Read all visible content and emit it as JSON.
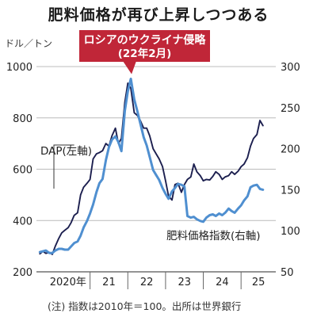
{
  "chart_data": {
    "type": "line",
    "title": "肥料価格が再び上昇しつつある",
    "unit_label": "ドル／トン",
    "note": "(注) 指数は2010年＝100。出所は世界銀行",
    "callout": {
      "line1": "ロシアのウクライナ侵略",
      "line2": "(22年2月)",
      "date": 2022.1,
      "color": "#c02638"
    },
    "x_tick_labels": [
      {
        "x": 2020,
        "label": "2020年"
      },
      {
        "x": 2021,
        "label": "21"
      },
      {
        "x": 2022,
        "label": "22"
      },
      {
        "x": 2023,
        "label": "23"
      },
      {
        "x": 2024,
        "label": "24"
      },
      {
        "x": 2025,
        "label": "25"
      }
    ],
    "xlim": [
      2019.58,
      2025.92
    ],
    "y_left": {
      "ticks": [
        200,
        400,
        600,
        800,
        1000
      ],
      "ylim": [
        200,
        1000
      ]
    },
    "y_right": {
      "ticks": [
        50,
        100,
        150,
        200,
        250,
        300
      ],
      "ylim": [
        50,
        300
      ]
    },
    "series": [
      {
        "name": "DAP(左軸)",
        "axis": "left",
        "color": "#1c1f4f",
        "points": [
          [
            2019.67,
            270
          ],
          [
            2019.75,
            280
          ],
          [
            2019.83,
            272
          ],
          [
            2019.92,
            276
          ],
          [
            2020.0,
            268
          ],
          [
            2020.08,
            300
          ],
          [
            2020.17,
            330
          ],
          [
            2020.25,
            352
          ],
          [
            2020.33,
            362
          ],
          [
            2020.42,
            372
          ],
          [
            2020.5,
            392
          ],
          [
            2020.58,
            420
          ],
          [
            2020.67,
            430
          ],
          [
            2020.75,
            500
          ],
          [
            2020.83,
            530
          ],
          [
            2020.92,
            545
          ],
          [
            2021.0,
            560
          ],
          [
            2021.08,
            640
          ],
          [
            2021.17,
            660
          ],
          [
            2021.25,
            665
          ],
          [
            2021.33,
            672
          ],
          [
            2021.42,
            700
          ],
          [
            2021.5,
            690
          ],
          [
            2021.58,
            730
          ],
          [
            2021.67,
            760
          ],
          [
            2021.75,
            700
          ],
          [
            2021.83,
            720
          ],
          [
            2021.92,
            860
          ],
          [
            2022.0,
            935
          ],
          [
            2022.08,
            915
          ],
          [
            2022.17,
            820
          ],
          [
            2022.25,
            810
          ],
          [
            2022.33,
            790
          ],
          [
            2022.42,
            760
          ],
          [
            2022.5,
            760
          ],
          [
            2022.58,
            730
          ],
          [
            2022.67,
            680
          ],
          [
            2022.75,
            660
          ],
          [
            2022.83,
            640
          ],
          [
            2022.92,
            610
          ],
          [
            2023.0,
            555
          ],
          [
            2023.08,
            495
          ],
          [
            2023.17,
            480
          ],
          [
            2023.25,
            540
          ],
          [
            2023.33,
            545
          ],
          [
            2023.42,
            510
          ],
          [
            2023.5,
            540
          ],
          [
            2023.58,
            560
          ],
          [
            2023.67,
            570
          ],
          [
            2023.75,
            620
          ],
          [
            2023.83,
            590
          ],
          [
            2023.92,
            575
          ],
          [
            2024.0,
            555
          ],
          [
            2024.08,
            560
          ],
          [
            2024.17,
            558
          ],
          [
            2024.25,
            572
          ],
          [
            2024.33,
            590
          ],
          [
            2024.42,
            580
          ],
          [
            2024.5,
            560
          ],
          [
            2024.58,
            570
          ],
          [
            2024.67,
            575
          ],
          [
            2024.75,
            590
          ],
          [
            2024.83,
            580
          ],
          [
            2024.92,
            592
          ],
          [
            2025.0,
            610
          ],
          [
            2025.08,
            620
          ],
          [
            2025.17,
            645
          ],
          [
            2025.25,
            690
          ],
          [
            2025.33,
            720
          ],
          [
            2025.42,
            735
          ],
          [
            2025.5,
            790
          ],
          [
            2025.58,
            770
          ]
        ]
      },
      {
        "name": "肥料価格指数(右軸)",
        "axis": "right",
        "color": "#4f8fd0",
        "points": [
          [
            2019.67,
            74
          ],
          [
            2019.75,
            75
          ],
          [
            2019.83,
            76
          ],
          [
            2019.92,
            73
          ],
          [
            2020.0,
            73
          ],
          [
            2020.08,
            76
          ],
          [
            2020.17,
            78
          ],
          [
            2020.25,
            78
          ],
          [
            2020.33,
            77
          ],
          [
            2020.42,
            77
          ],
          [
            2020.5,
            81
          ],
          [
            2020.58,
            85
          ],
          [
            2020.67,
            87
          ],
          [
            2020.75,
            94
          ],
          [
            2020.83,
            104
          ],
          [
            2020.92,
            112
          ],
          [
            2021.0,
            121
          ],
          [
            2021.08,
            132
          ],
          [
            2021.17,
            147
          ],
          [
            2021.25,
            158
          ],
          [
            2021.33,
            163
          ],
          [
            2021.42,
            186
          ],
          [
            2021.5,
            202
          ],
          [
            2021.58,
            211
          ],
          [
            2021.67,
            215
          ],
          [
            2021.75,
            208
          ],
          [
            2021.83,
            197
          ],
          [
            2021.92,
            246
          ],
          [
            2022.0,
            270
          ],
          [
            2022.08,
            285
          ],
          [
            2022.17,
            260
          ],
          [
            2022.25,
            246
          ],
          [
            2022.33,
            231
          ],
          [
            2022.42,
            214
          ],
          [
            2022.5,
            204
          ],
          [
            2022.58,
            190
          ],
          [
            2022.67,
            174
          ],
          [
            2022.75,
            168
          ],
          [
            2022.83,
            162
          ],
          [
            2022.92,
            152
          ],
          [
            2023.0,
            145
          ],
          [
            2023.08,
            139
          ],
          [
            2023.17,
            148
          ],
          [
            2023.25,
            152
          ],
          [
            2023.33,
            157
          ],
          [
            2023.42,
            156
          ],
          [
            2023.5,
            154
          ],
          [
            2023.58,
            118
          ],
          [
            2023.67,
            116
          ],
          [
            2023.75,
            117
          ],
          [
            2023.83,
            114
          ],
          [
            2023.92,
            112
          ],
          [
            2024.0,
            111
          ],
          [
            2024.08,
            116
          ],
          [
            2024.17,
            119
          ],
          [
            2024.25,
            120
          ],
          [
            2024.33,
            118
          ],
          [
            2024.42,
            121
          ],
          [
            2024.5,
            119
          ],
          [
            2024.58,
            122
          ],
          [
            2024.67,
            127
          ],
          [
            2024.75,
            124
          ],
          [
            2024.83,
            122
          ],
          [
            2024.92,
            127
          ],
          [
            2025.0,
            131
          ],
          [
            2025.08,
            137
          ],
          [
            2025.17,
            142
          ],
          [
            2025.25,
            153
          ],
          [
            2025.33,
            155
          ],
          [
            2025.42,
            156
          ],
          [
            2025.5,
            151
          ],
          [
            2025.58,
            150
          ]
        ]
      }
    ]
  }
}
